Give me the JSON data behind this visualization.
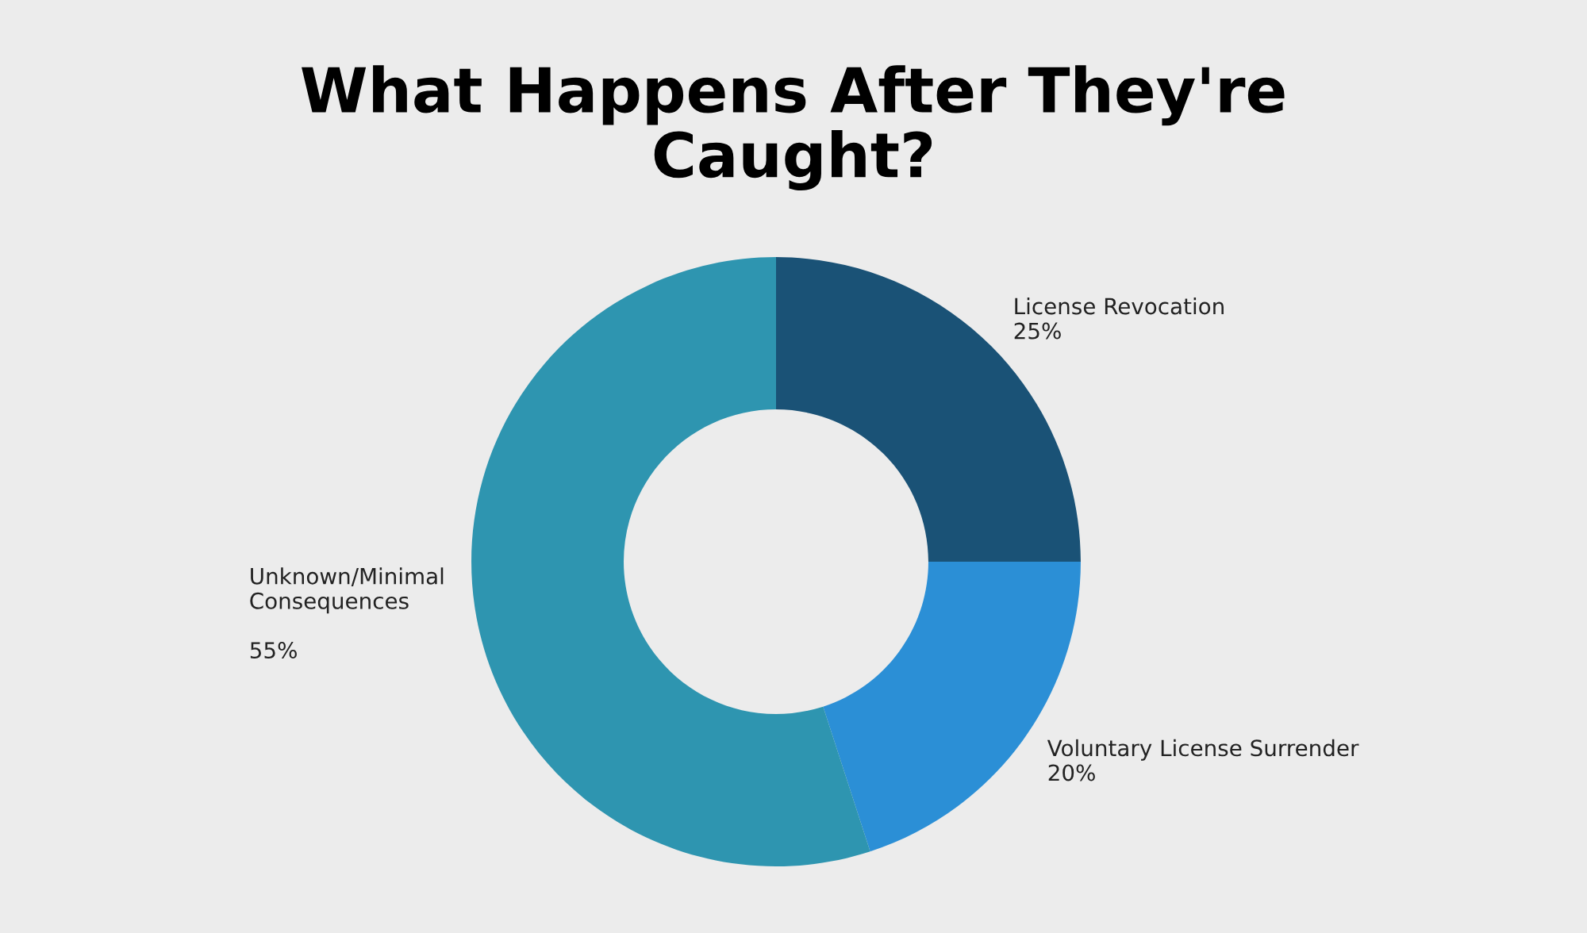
{
  "chart_data": {
    "type": "donut",
    "title": "What Happens After They're\nCaught?",
    "categories": [
      "License Revocation",
      "Voluntary License Surrender",
      "Unknown/Minimal\nConsequences"
    ],
    "values": [
      25,
      20,
      55
    ],
    "value_labels": [
      "25%",
      "20%",
      "55%"
    ],
    "colors": [
      "#1a5276",
      "#2b8fd6",
      "#2e95b0"
    ],
    "legend": false
  }
}
